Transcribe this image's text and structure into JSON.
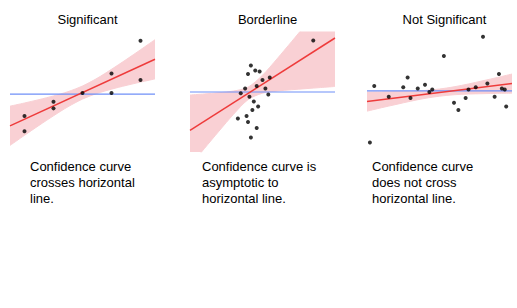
{
  "chart_data": [
    {
      "type": "scatter",
      "title": "Significant",
      "annotation": [
        "Confidence curve",
        "crosses horizontal",
        "line."
      ],
      "xlim": [
        0,
        10
      ],
      "xticks": [
        0,
        10
      ],
      "ylim": [
        -1,
        10
      ],
      "yticks": [
        -1,
        10
      ],
      "tick_labels": false,
      "grid": false,
      "points": {
        "x": [
          1,
          1,
          3,
          3,
          5,
          7,
          7,
          9,
          9
        ],
        "y": [
          2.3,
          0.9,
          3.0,
          3.6,
          4.4,
          4.4,
          6.2,
          9.2,
          5.6
        ],
        "color": "#000000"
      },
      "fit": {
        "x": [
          0,
          10
        ],
        "y": [
          1.4,
          7.5
        ],
        "color": "#ee3b3b"
      },
      "band": {
        "x": [
          0,
          1,
          2,
          3,
          4,
          5,
          6,
          7,
          8,
          9,
          10
        ],
        "lower": [
          -0.4,
          0.53,
          1.44,
          2.32,
          3.15,
          3.85,
          4.37,
          4.76,
          5.1,
          5.41,
          5.7
        ],
        "upper": [
          3.2,
          3.49,
          3.8,
          4.14,
          4.53,
          5.05,
          5.75,
          6.58,
          7.46,
          8.37,
          9.3
        ],
        "color": "#f9d0d4"
      },
      "hline": {
        "value": 4.3,
        "color": "#6f8ff7"
      }
    },
    {
      "type": "scatter",
      "title": "Borderline",
      "annotation": [
        "Confidence curve is",
        "asymptotic to",
        "horizontal line."
      ],
      "xlim": [
        0,
        10
      ],
      "xticks": [
        0,
        10
      ],
      "ylim": [
        0,
        10
      ],
      "yticks": [
        0,
        10
      ],
      "tick_labels": false,
      "grid": false,
      "points": {
        "x": [
          3.8,
          4.0,
          4.2,
          4.5,
          3.5,
          4.6,
          5.0,
          5.2,
          4.1,
          4.4,
          4.3,
          3.9,
          4.7,
          4.0,
          3.3,
          5.4,
          4.8,
          5.5,
          4.2,
          4.6,
          8.5
        ],
        "y": [
          5.3,
          6.5,
          7.2,
          6.8,
          4.9,
          5.5,
          6.0,
          5.3,
          4.6,
          4.2,
          3.5,
          3.0,
          3.8,
          2.5,
          2.8,
          4.8,
          6.7,
          6.2,
          1.2,
          2.0,
          9.3
        ],
        "color": "#000000"
      },
      "fit": {
        "x": [
          0,
          10
        ],
        "y": [
          1.8,
          9.5
        ],
        "color": "#ee3b3b"
      },
      "band": {
        "x": [
          0,
          1,
          2,
          3,
          4,
          5,
          6,
          7,
          8,
          9,
          10
        ],
        "lower": [
          -1.15,
          0.3,
          1.74,
          3.14,
          4.36,
          4.9,
          5.08,
          5.19,
          5.28,
          5.37,
          5.46
        ],
        "upper": [
          4.75,
          4.84,
          4.94,
          5.08,
          5.4,
          6.4,
          7.76,
          9.19,
          10.64,
          12.09,
          13.54
        ],
        "color": "#f9d0d4"
      },
      "hline": {
        "value": 5,
        "color": "#6f8ff7"
      }
    },
    {
      "type": "scatter",
      "title": "Not Significant",
      "annotation": [
        "Confidence curve",
        "does not cross",
        "horizontal line."
      ],
      "xlim": [
        0,
        10
      ],
      "xticks": [
        0,
        10
      ],
      "ylim": [
        0,
        10
      ],
      "yticks": [
        0,
        10
      ],
      "tick_labels": false,
      "grid": false,
      "points": {
        "x": [
          0.5,
          0.2,
          1.5,
          2.5,
          2.8,
          3.0,
          3.5,
          4.0,
          4.5,
          4.3,
          5.3,
          6.0,
          6.3,
          6.8,
          7.0,
          7.5,
          8.0,
          8.3,
          8.8,
          9.1,
          9.5,
          9.6,
          9.3
        ],
        "y": [
          5.5,
          0.8,
          4.6,
          5.4,
          6.2,
          4.5,
          5.3,
          5.6,
          5.2,
          5.0,
          8.0,
          4.1,
          3.5,
          4.5,
          5.2,
          5.4,
          9.6,
          5.7,
          4.6,
          6.5,
          5.2,
          3.8,
          5.3
        ],
        "color": "#000000"
      },
      "fit": {
        "x": [
          0,
          10
        ],
        "y": [
          4.2,
          5.7
        ],
        "color": "#ee3b3b"
      },
      "band": {
        "x": [
          0,
          1,
          2,
          3,
          4,
          5,
          6,
          7,
          8,
          9,
          10
        ],
        "lower": [
          3.4,
          3.69,
          3.96,
          4.23,
          4.47,
          4.65,
          4.77,
          4.83,
          4.86,
          4.89,
          4.9
        ],
        "upper": [
          5.0,
          5.01,
          5.04,
          5.07,
          5.13,
          5.25,
          5.43,
          5.67,
          5.94,
          6.21,
          6.5
        ],
        "color": "#f9d0d4"
      },
      "hline": {
        "value": 5.1,
        "color": "#6f8ff7"
      }
    }
  ]
}
